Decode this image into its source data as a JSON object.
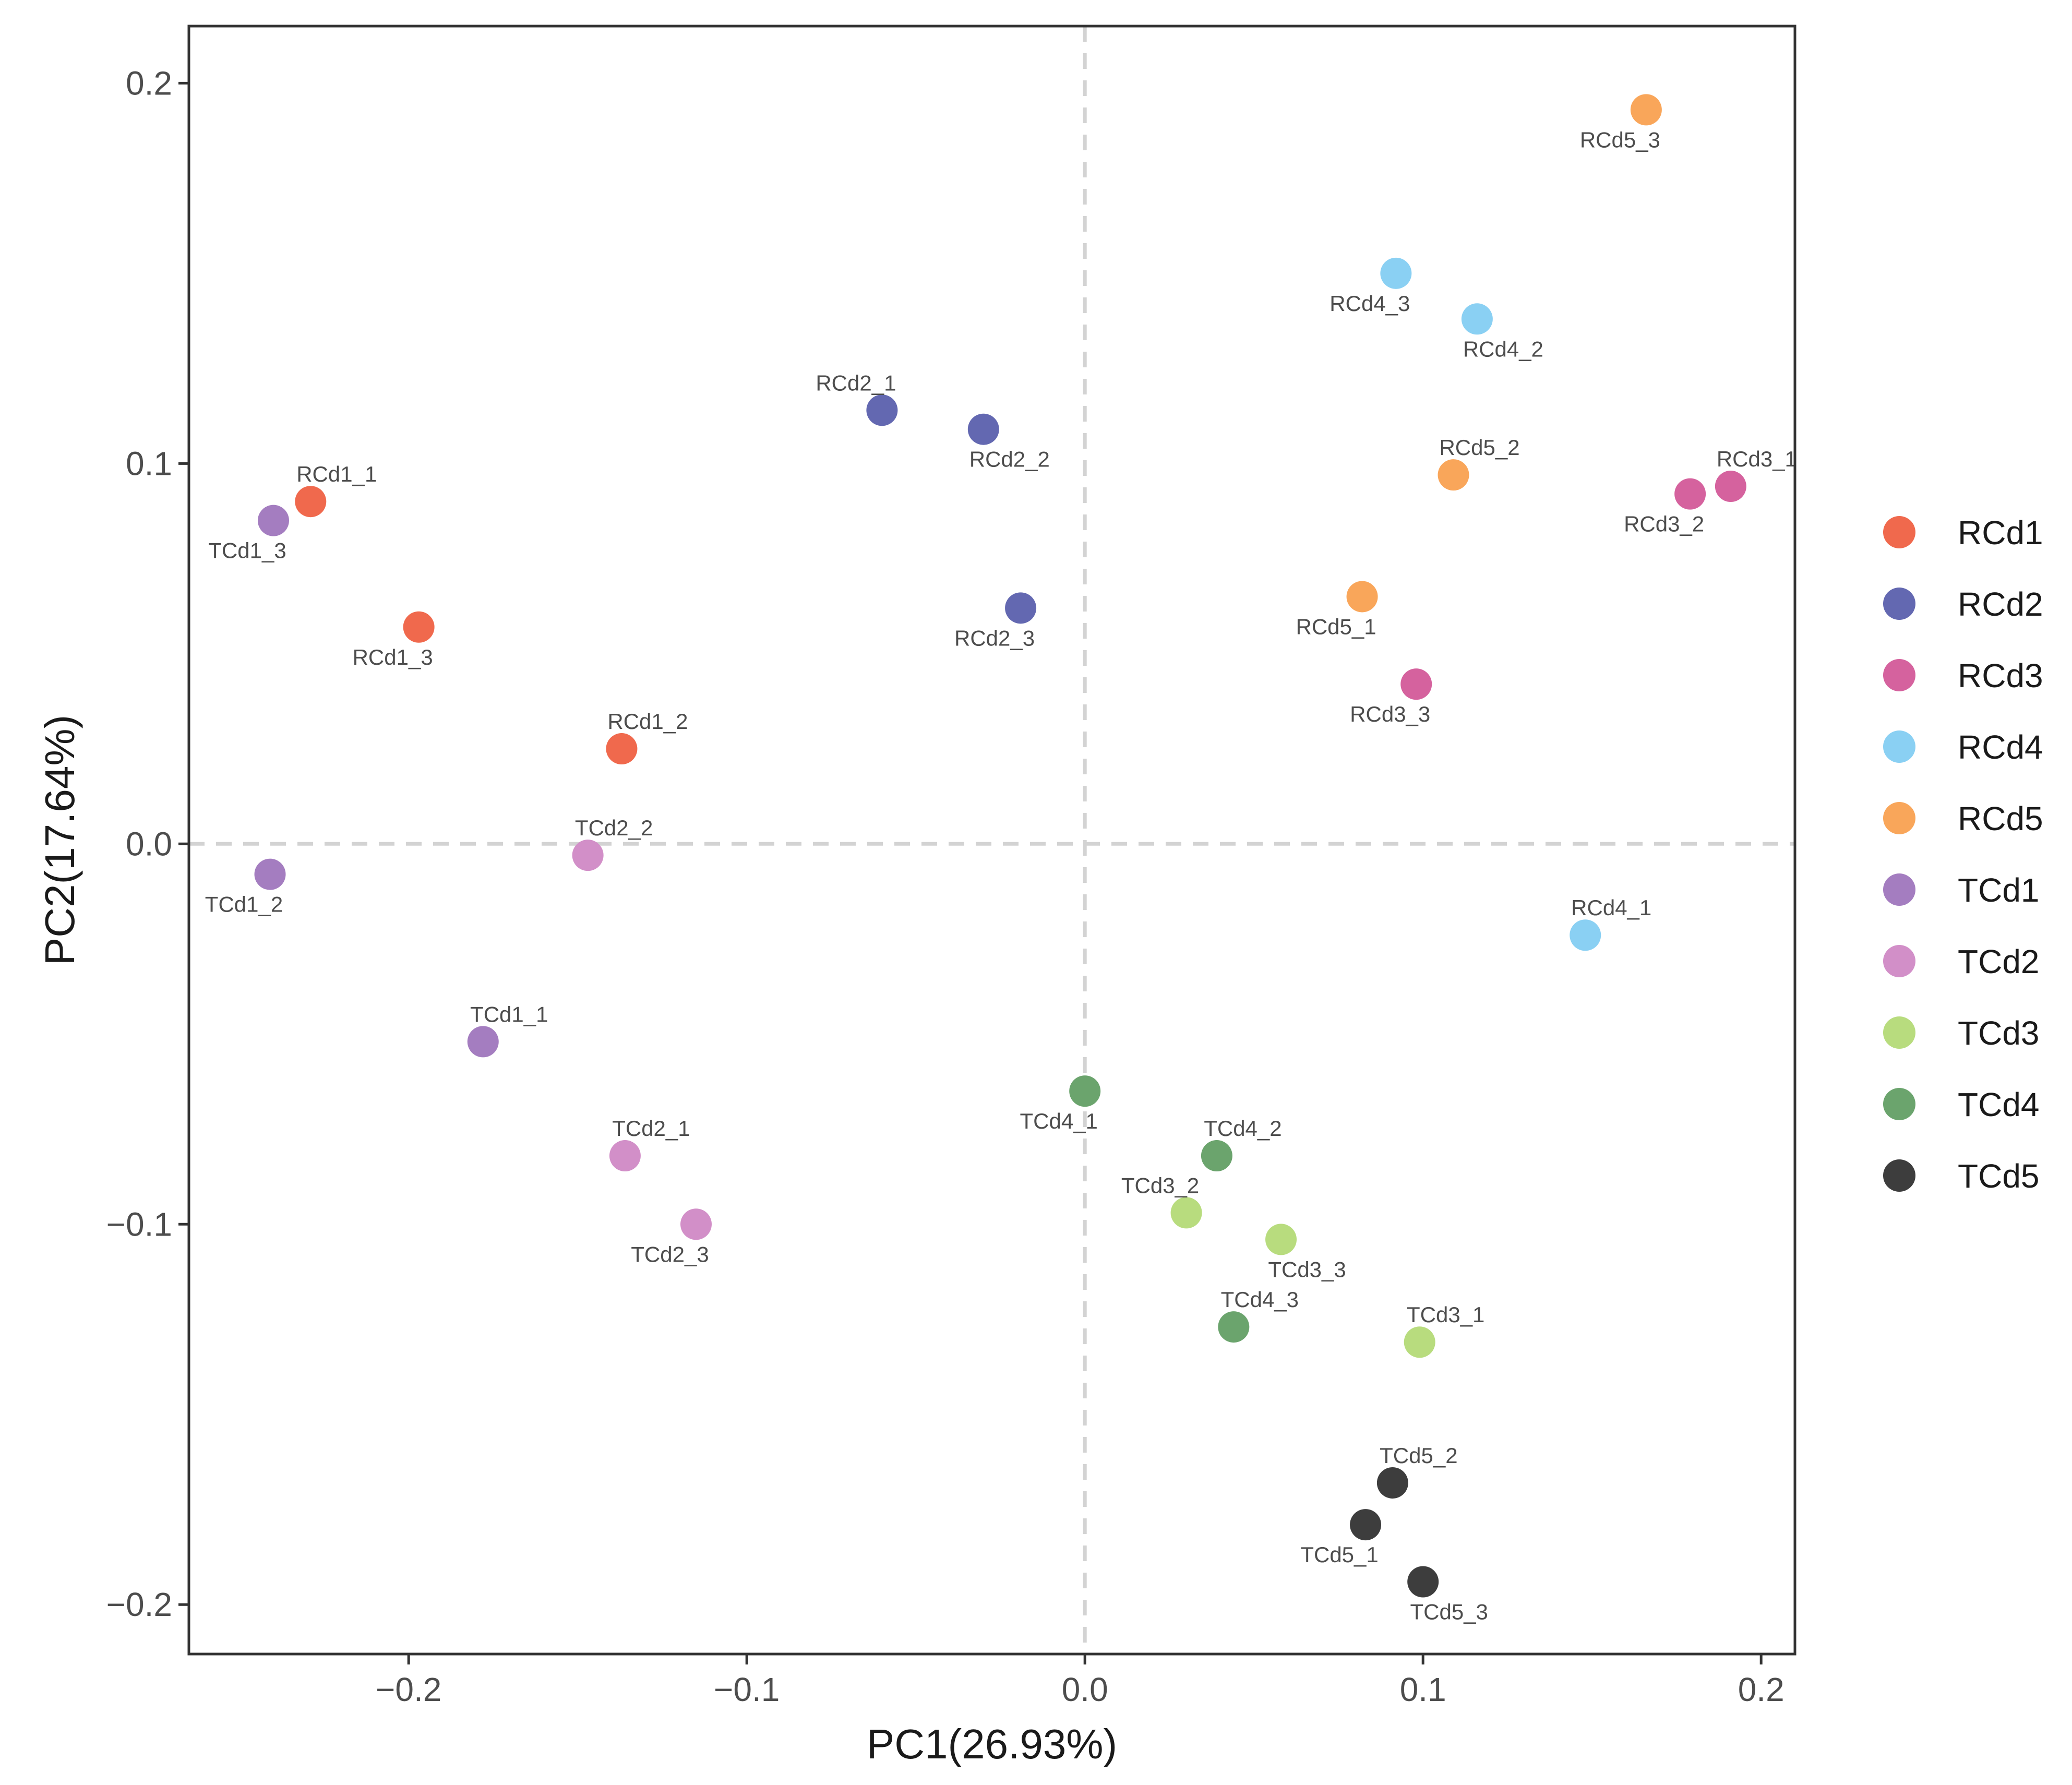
{
  "chart_data": {
    "type": "scatter",
    "title": "",
    "xlabel": "PC1(26.93%)",
    "ylabel": "PC2(17.64%)",
    "xlim": [
      -0.265,
      0.21
    ],
    "ylim": [
      -0.213,
      0.215
    ],
    "xticks": [
      {
        "value": -0.2,
        "label": "−0.2"
      },
      {
        "value": -0.1,
        "label": "−0.1"
      },
      {
        "value": 0.0,
        "label": "0.0"
      },
      {
        "value": 0.1,
        "label": "0.1"
      },
      {
        "value": 0.2,
        "label": "0.2"
      }
    ],
    "yticks": [
      {
        "value": -0.2,
        "label": "−0.2"
      },
      {
        "value": -0.1,
        "label": "−0.1"
      },
      {
        "value": 0.0,
        "label": "0.0"
      },
      {
        "value": 0.1,
        "label": "0.1"
      },
      {
        "value": 0.2,
        "label": "0.2"
      }
    ],
    "reference_lines": {
      "x": 0,
      "y": 0,
      "style": "dashed"
    },
    "grid": false,
    "legend_position": "right",
    "series": [
      {
        "name": "RCd1",
        "color": "#F0694D",
        "points": [
          {
            "label": "RCd1_1",
            "x": -0.229,
            "y": 0.09,
            "label_pos": "above-right"
          },
          {
            "label": "RCd1_2",
            "x": -0.137,
            "y": 0.025,
            "label_pos": "above-right"
          },
          {
            "label": "RCd1_3",
            "x": -0.197,
            "y": 0.057,
            "label_pos": "below-left"
          }
        ]
      },
      {
        "name": "RCd2",
        "color": "#6368B1",
        "points": [
          {
            "label": "RCd2_1",
            "x": -0.06,
            "y": 0.114,
            "label_pos": "above-left"
          },
          {
            "label": "RCd2_2",
            "x": -0.03,
            "y": 0.109,
            "label_pos": "below-right"
          },
          {
            "label": "RCd2_3",
            "x": -0.019,
            "y": 0.062,
            "label_pos": "below-left"
          }
        ]
      },
      {
        "name": "RCd3",
        "color": "#D5629E",
        "points": [
          {
            "label": "RCd3_1",
            "x": 0.191,
            "y": 0.094,
            "label_pos": "above-right"
          },
          {
            "label": "RCd3_2",
            "x": 0.179,
            "y": 0.092,
            "label_pos": "below-left"
          },
          {
            "label": "RCd3_3",
            "x": 0.098,
            "y": 0.042,
            "label_pos": "below-left"
          }
        ]
      },
      {
        "name": "RCd4",
        "color": "#8AD0F3",
        "points": [
          {
            "label": "RCd4_1",
            "x": 0.148,
            "y": -0.024,
            "label_pos": "above-right"
          },
          {
            "label": "RCd4_2",
            "x": 0.116,
            "y": 0.138,
            "label_pos": "below-right"
          },
          {
            "label": "RCd4_3",
            "x": 0.092,
            "y": 0.15,
            "label_pos": "below-left"
          }
        ]
      },
      {
        "name": "RCd5",
        "color": "#F9A65A",
        "points": [
          {
            "label": "RCd5_1",
            "x": 0.082,
            "y": 0.065,
            "label_pos": "below-left"
          },
          {
            "label": "RCd5_2",
            "x": 0.109,
            "y": 0.097,
            "label_pos": "above-right"
          },
          {
            "label": "RCd5_3",
            "x": 0.166,
            "y": 0.193,
            "label_pos": "below-left"
          }
        ]
      },
      {
        "name": "TCd1",
        "color": "#A47DC0",
        "points": [
          {
            "label": "TCd1_1",
            "x": -0.178,
            "y": -0.052,
            "label_pos": "above-right"
          },
          {
            "label": "TCd1_2",
            "x": -0.241,
            "y": -0.008,
            "label_pos": "below-left"
          },
          {
            "label": "TCd1_3",
            "x": -0.24,
            "y": 0.085,
            "label_pos": "below-left"
          }
        ]
      },
      {
        "name": "TCd2",
        "color": "#D28FC8",
        "points": [
          {
            "label": "TCd2_1",
            "x": -0.136,
            "y": -0.082,
            "label_pos": "above-right"
          },
          {
            "label": "TCd2_2",
            "x": -0.147,
            "y": -0.003,
            "label_pos": "above-right"
          },
          {
            "label": "TCd2_3",
            "x": -0.115,
            "y": -0.1,
            "label_pos": "below-left"
          }
        ]
      },
      {
        "name": "TCd3",
        "color": "#B8DC7E",
        "points": [
          {
            "label": "TCd3_1",
            "x": 0.099,
            "y": -0.131,
            "label_pos": "above-right"
          },
          {
            "label": "TCd3_2",
            "x": 0.03,
            "y": -0.097,
            "label_pos": "above-left"
          },
          {
            "label": "TCd3_3",
            "x": 0.058,
            "y": -0.104,
            "label_pos": "below-right"
          }
        ]
      },
      {
        "name": "TCd4",
        "color": "#6BA46D",
        "points": [
          {
            "label": "TCd4_1",
            "x": 0.0,
            "y": -0.065,
            "label_pos": "below-left"
          },
          {
            "label": "TCd4_2",
            "x": 0.039,
            "y": -0.082,
            "label_pos": "above-right"
          },
          {
            "label": "TCd4_3",
            "x": 0.044,
            "y": -0.127,
            "label_pos": "above-right"
          }
        ]
      },
      {
        "name": "TCd5",
        "color": "#3D3D3D",
        "points": [
          {
            "label": "TCd5_1",
            "x": 0.083,
            "y": -0.179,
            "label_pos": "below-left"
          },
          {
            "label": "TCd5_2",
            "x": 0.091,
            "y": -0.168,
            "label_pos": "above-right"
          },
          {
            "label": "TCd5_3",
            "x": 0.1,
            "y": -0.194,
            "label_pos": "below-right"
          }
        ]
      }
    ]
  }
}
